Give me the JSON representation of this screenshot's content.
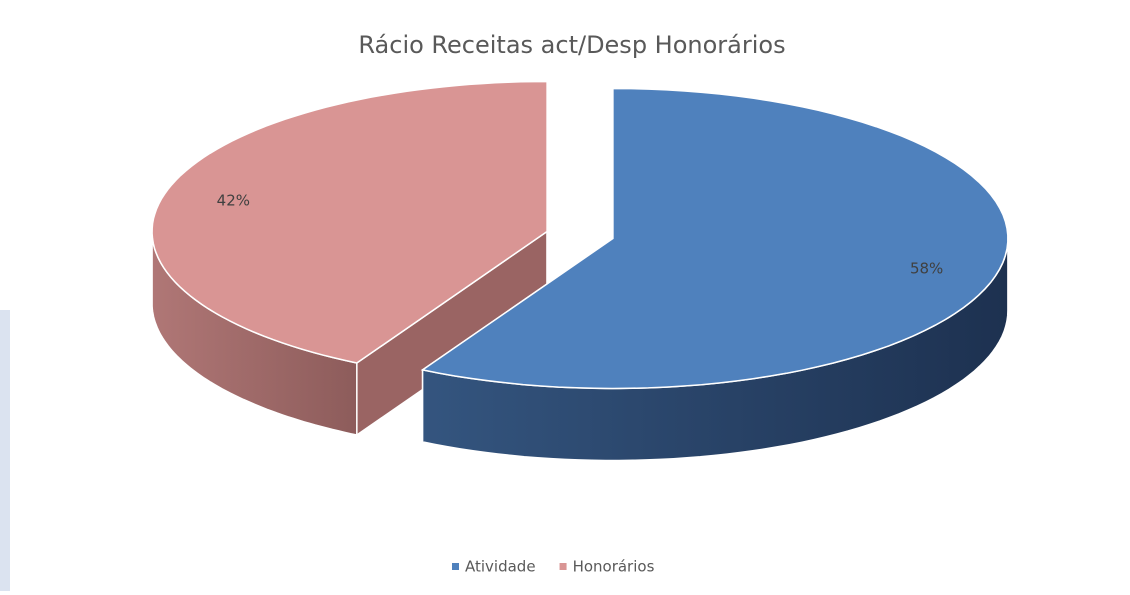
{
  "chart_data": {
    "type": "pie",
    "title": "Rácio Receitas act/Desp Honorários",
    "categories": [
      "Atividade",
      "Honorários"
    ],
    "values": [
      58,
      42
    ],
    "value_labels": [
      "58%",
      "42%"
    ],
    "colors": [
      "#4f81bd",
      "#d99594"
    ],
    "legend": "bottom"
  }
}
